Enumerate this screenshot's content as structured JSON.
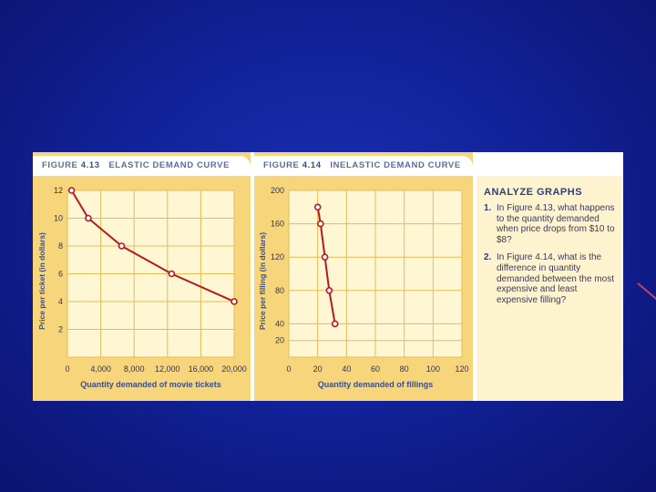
{
  "chart_data": [
    {
      "type": "line",
      "figure_label": "FIGURE",
      "figure_number": "4.13",
      "title": "ELASTIC DEMAND CURVE",
      "xlabel": "Quantity demanded of movie tickets",
      "ylabel": "Price per ticket (in dollars)",
      "xlim": [
        0,
        20000
      ],
      "ylim": [
        0,
        12
      ],
      "x_ticks": [
        "0",
        "4,000",
        "8,000",
        "12,000",
        "16,000",
        "20,000"
      ],
      "y_ticks": [
        "2",
        "4",
        "6",
        "8",
        "10",
        "12"
      ],
      "grid": true,
      "points": [
        {
          "x": 500,
          "y": 12
        },
        {
          "x": 2500,
          "y": 10
        },
        {
          "x": 6500,
          "y": 8
        },
        {
          "x": 12500,
          "y": 6
        },
        {
          "x": 20000,
          "y": 4
        }
      ],
      "line_color": "#b51a22",
      "background_color": "#f7d57a"
    },
    {
      "type": "line",
      "figure_label": "FIGURE",
      "figure_number": "4.14",
      "title": "INELASTIC DEMAND CURVE",
      "xlabel": "Quantity demanded of fillings",
      "ylabel": "Price per filling (in dollars)",
      "xlim": [
        0,
        120
      ],
      "ylim": [
        0,
        200
      ],
      "x_ticks": [
        "0",
        "20",
        "40",
        "60",
        "80",
        "100",
        "120"
      ],
      "y_ticks": [
        "20",
        "40",
        "80",
        "120",
        "160",
        "200"
      ],
      "grid": true,
      "points": [
        {
          "x": 20,
          "y": 180
        },
        {
          "x": 22,
          "y": 160
        },
        {
          "x": 25,
          "y": 120
        },
        {
          "x": 28,
          "y": 80
        },
        {
          "x": 32,
          "y": 40
        }
      ],
      "line_color": "#b51a22",
      "background_color": "#f7d57a"
    }
  ],
  "analyze": {
    "title": "ANALYZE GRAPHS",
    "questions": [
      {
        "number": "1.",
        "text": "In Figure 4.13, what happens to the quantity demanded when price drops from $10 to $8?"
      },
      {
        "number": "2.",
        "text": "In Figure 4.14, what is the difference in quantity demanded between the most expensive and least expensive filling?"
      }
    ]
  }
}
